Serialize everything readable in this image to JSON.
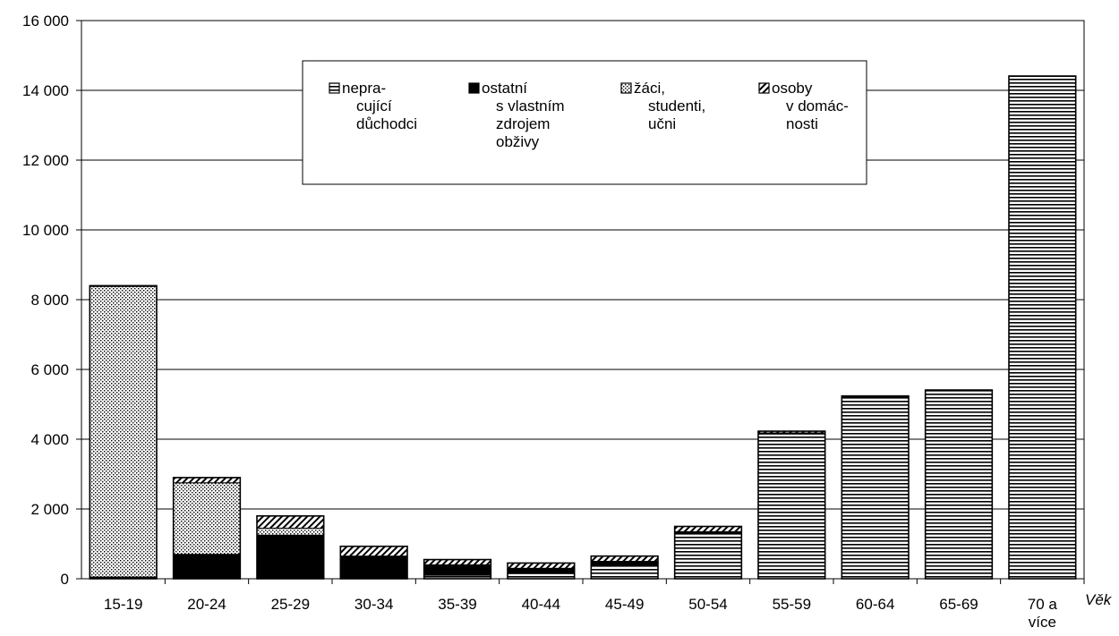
{
  "chart_data": {
    "type": "bar",
    "stacked": true,
    "xlabel": "Věk",
    "ylabel": "",
    "ylim": [
      0,
      16000
    ],
    "yticks": [
      "0",
      "2 000",
      "4 000",
      "6 000",
      "8 000",
      "10 000",
      "12 000",
      "14 000",
      "16 000"
    ],
    "categories": [
      [
        "15-19"
      ],
      [
        "20-24"
      ],
      [
        "25-29"
      ],
      [
        "30-34"
      ],
      [
        "35-39"
      ],
      [
        "40-44"
      ],
      [
        "45-49"
      ],
      [
        "50-54"
      ],
      [
        "55-59"
      ],
      [
        "60-64"
      ],
      [
        "65-69"
      ],
      [
        "70 a",
        "více"
      ]
    ],
    "grid": true,
    "legend_position": "top-center",
    "series": [
      {
        "name": [
          "nepra-",
          "cující",
          "důchodci"
        ],
        "pattern": "horizontal-lines",
        "values": [
          0,
          0,
          0,
          0,
          100,
          150,
          400,
          1300,
          4150,
          5200,
          5400,
          14400
        ]
      },
      {
        "name": [
          "ostatní",
          "s vlastním",
          "zdrojem",
          "obživy"
        ],
        "pattern": "solid-black",
        "values": [
          50,
          700,
          1250,
          650,
          300,
          150,
          100,
          50,
          30,
          20,
          10,
          10
        ]
      },
      {
        "name": [
          "žáci,",
          "studenti,",
          "učni"
        ],
        "pattern": "dotted",
        "values": [
          8330,
          2050,
          200,
          0,
          0,
          0,
          0,
          0,
          0,
          0,
          0,
          0
        ]
      },
      {
        "name": [
          "osoby",
          "v domác-",
          "nosti"
        ],
        "pattern": "diagonal-hatch",
        "values": [
          20,
          150,
          350,
          280,
          150,
          150,
          150,
          150,
          50,
          20,
          0,
          0
        ]
      }
    ],
    "colors": {
      "ink": "#000000",
      "background": "#ffffff"
    }
  }
}
